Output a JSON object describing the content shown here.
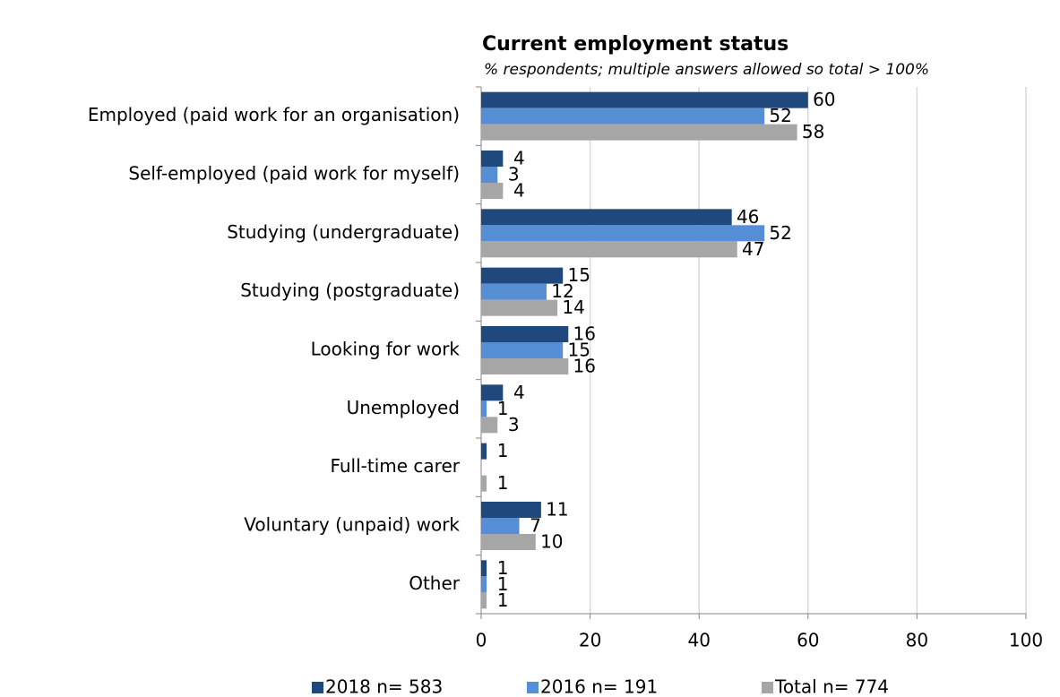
{
  "chart_data": {
    "type": "hbar",
    "title": "Current employment status",
    "subtitle": "% respondents; multiple answers allowed so total > 100%",
    "categories": [
      "Employed (paid work for an organisation)",
      "Self-employed (paid work for myself)",
      "Studying (undergraduate)",
      "Studying (postgraduate)",
      "Looking for work",
      "Unemployed",
      "Full-time carer",
      "Voluntary (unpaid) work",
      "Other"
    ],
    "series": [
      {
        "name": "2018 n= 583",
        "color": "#1f497d",
        "values": [
          60,
          4,
          46,
          15,
          16,
          4,
          1,
          11,
          1
        ]
      },
      {
        "name": "2016 n= 191",
        "color": "#558ed5",
        "values": [
          52,
          3,
          52,
          12,
          15,
          1,
          null,
          7,
          1
        ]
      },
      {
        "name": "Total n= 774",
        "color": "#a6a6a6",
        "values": [
          58,
          4,
          47,
          14,
          16,
          3,
          1,
          10,
          1
        ]
      }
    ],
    "xlim": [
      0,
      100
    ],
    "xticks": [
      0,
      20,
      40,
      60,
      80,
      100
    ],
    "grid": true,
    "legend": "bottom"
  }
}
